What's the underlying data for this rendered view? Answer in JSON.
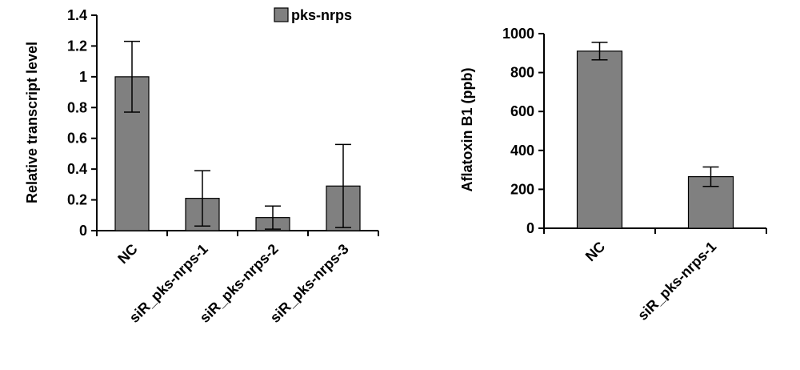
{
  "chart_data": [
    {
      "type": "bar",
      "categories": [
        "NC",
        "siR_pks-nrps-1",
        "siR_pks-nrps-2",
        "siR_pks-nrps-3"
      ],
      "series": [
        {
          "name": "pks-nrps",
          "values": [
            1.0,
            0.21,
            0.085,
            0.29
          ],
          "errors": [
            0.23,
            0.18,
            0.075,
            0.27
          ],
          "color": "#808080"
        }
      ],
      "ylabel": "Relative transcript level",
      "xlabel": "",
      "ylim": [
        0,
        1.4
      ],
      "yticks": [
        "0",
        "0.2",
        "0.4",
        "0.6",
        "0.8",
        "1",
        "1.2",
        "1.4"
      ],
      "legend": "top-right",
      "grid": false
    },
    {
      "type": "bar",
      "categories": [
        "NC",
        "siR_pks-nrps-1"
      ],
      "series": [
        {
          "values": [
            910,
            265
          ],
          "errors": [
            45,
            50
          ],
          "color": "#808080"
        }
      ],
      "ylabel": "Aflatoxin B1 (ppb)",
      "xlabel": "",
      "ylim": [
        0,
        1000
      ],
      "yticks": [
        "0",
        "200",
        "400",
        "600",
        "800",
        "1000"
      ],
      "grid": false
    }
  ]
}
